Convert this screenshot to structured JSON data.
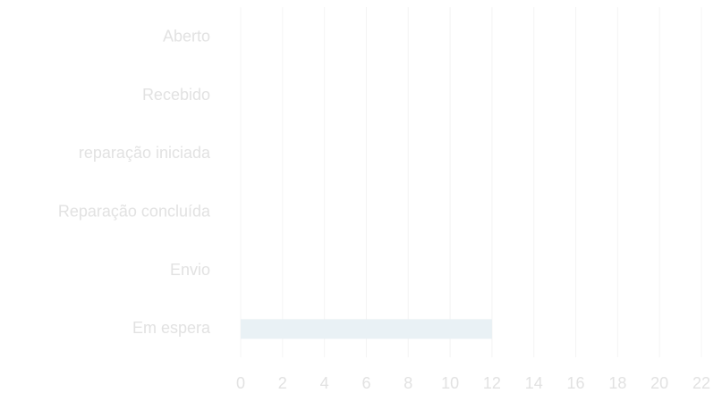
{
  "chart_data": {
    "type": "bar",
    "orientation": "horizontal",
    "categories": [
      "Aberto",
      "Recebido",
      "reparação iniciada",
      "Reparação concluída",
      "Envio",
      "Em espera"
    ],
    "values": [
      0,
      0,
      0,
      0,
      0,
      12
    ],
    "color": "#e9f1f5",
    "xlim": [
      0,
      22
    ],
    "xticks": [
      0,
      2,
      4,
      6,
      8,
      10,
      12,
      14,
      16,
      18,
      20,
      22
    ],
    "grid": true
  }
}
